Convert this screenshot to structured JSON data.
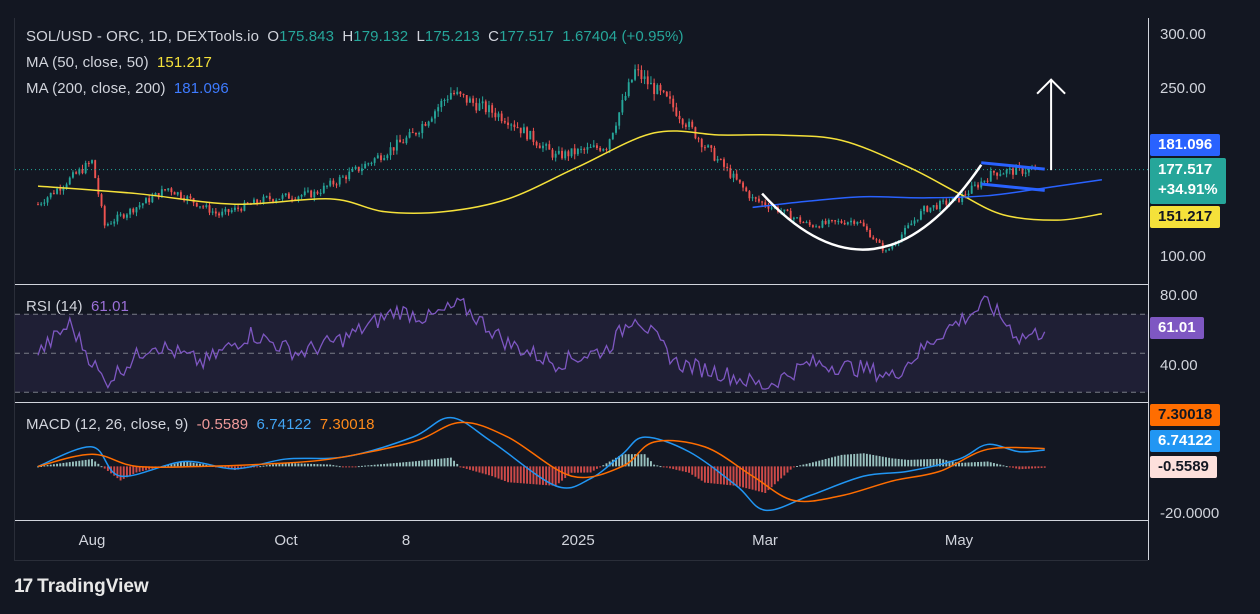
{
  "colors": {
    "background": "#131722",
    "up": "#26a69a",
    "down": "#ef5350",
    "ma50": "#f5e13a",
    "ma200": "#2962ff",
    "rsi": "#7e57c2",
    "macd": "#2196f3",
    "signal": "#ff6d00",
    "annotation": "#ffffff"
  },
  "logo": {
    "brand": "TradingView",
    "icon": "tradingview-logo-icon"
  },
  "legend_main": {
    "symbol": "SOL/USD - ORC, 1D, DEXTools.io",
    "open_key": "O",
    "open": "175.843",
    "high_key": "H",
    "high": "179.132",
    "low_key": "L",
    "low": "175.213",
    "close_key": "C",
    "close": "177.517",
    "change": "1.67404 (+0.95%)"
  },
  "legend_ma50": {
    "label": "MA (50, close, 50)",
    "value": "151.217"
  },
  "legend_ma200": {
    "label": "MA (200, close, 200)",
    "value": "181.096"
  },
  "legend_rsi": {
    "label": "RSI (14)",
    "value": "61.01"
  },
  "legend_macd": {
    "label": "MACD (12, 26, close, 9)",
    "hist": "-0.5589",
    "macd": "6.74122",
    "signal": "7.30018"
  },
  "price_tags": {
    "ma200": "181.096",
    "close": "177.517",
    "change": "+34.91%",
    "ma50": "151.217"
  },
  "rsi_tag": "61.01",
  "macd_tags": {
    "signal": "7.30018",
    "macd": "6.74122",
    "hist": "-0.5589"
  },
  "price_axis": [
    "300.00",
    "250.00",
    "100.00"
  ],
  "rsi_axis": [
    "80.00",
    "40.00"
  ],
  "macd_axis": [
    "-20.0000"
  ],
  "time_axis": [
    "Aug",
    "Oct",
    "8",
    "2025",
    "Mar",
    "May"
  ],
  "chart_data": [
    {
      "type": "candlestick",
      "title": "SOL/USD - ORC, 1D, DEXTools.io",
      "x_axis": [
        "Aug",
        "Oct",
        "8",
        "2025",
        "Mar",
        "May"
      ],
      "ylim": [
        70,
        320
      ],
      "close_trend": {
        "x": [
          "Jul 15",
          "Aug 1",
          "Aug 5",
          "Aug 25",
          "Sep 10",
          "Sep 25",
          "Oct 10",
          "Oct 25",
          "Nov 10",
          "Nov 22",
          "Dec 10",
          "Dec 25",
          "Jan 10",
          "Jan 19",
          "Jan 30",
          "Feb 10",
          "Feb 25",
          "Mar 5",
          "Mar 15",
          "Mar 30",
          "Apr 8",
          "Apr 20",
          "May 1",
          "May 12",
          "May 25"
        ],
        "values": [
          145,
          185,
          125,
          160,
          135,
          150,
          155,
          180,
          210,
          250,
          225,
          190,
          200,
          270,
          240,
          200,
          150,
          140,
          125,
          130,
          100,
          140,
          150,
          175,
          177.5
        ]
      },
      "series": [
        {
          "name": "MA (50, close, 50)",
          "x": [
            "Jul 15",
            "Aug 15",
            "Sep 15",
            "Oct 15",
            "Nov 1",
            "Nov 20",
            "Dec 10",
            "Jan 1",
            "Jan 25",
            "Feb 15",
            "Mar 5",
            "Mar 25",
            "Apr 15",
            "May 1",
            "May 15",
            "Jun 1",
            "Jun 15"
          ],
          "values": [
            162,
            155,
            145,
            150,
            138,
            138,
            150,
            180,
            212,
            210,
            210,
            205,
            180,
            155,
            135,
            130,
            136
          ]
        },
        {
          "name": "MA (200, close, 200)",
          "x": [
            "Feb 25",
            "Mar 15",
            "Apr 1",
            "Apr 20",
            "May 10",
            "Jun 1",
            "Jun 15"
          ],
          "values": [
            142,
            148,
            152,
            151,
            153,
            162,
            168
          ]
        }
      ],
      "annotations": {
        "cup_curve": {
          "x": [
            "Feb 28",
            "Apr 5",
            "May 8"
          ],
          "values": [
            155,
            94,
            182
          ]
        },
        "flag_channel": {
          "x": [
            "May 8",
            "May 28"
          ],
          "upper": [
            184,
            178
          ],
          "lower": [
            164,
            158
          ]
        },
        "arrow": {
          "x": "May 30",
          "from": 177,
          "to": 262
        }
      }
    },
    {
      "type": "line",
      "title": "RSI (14)",
      "ylim": [
        25,
        85
      ],
      "bands": [
        70,
        50,
        30
      ],
      "series": [
        {
          "name": "RSI (14)",
          "x": [
            "Jul 15",
            "Jul 25",
            "Aug 5",
            "Aug 20",
            "Sep 5",
            "Sep 20",
            "Oct 5",
            "Oct 20",
            "Nov 5",
            "Nov 15",
            "Nov 25",
            "Dec 10",
            "Dec 25",
            "Jan 10",
            "Jan 19",
            "Feb 1",
            "Feb 15",
            "Mar 1",
            "Mar 15",
            "Apr 1",
            "Apr 10",
            "Apr 25",
            "May 10",
            "May 20",
            "May 28"
          ],
          "values": [
            50,
            65,
            35,
            55,
            45,
            60,
            50,
            58,
            72,
            68,
            75,
            55,
            45,
            52,
            70,
            45,
            40,
            33,
            45,
            42,
            38,
            60,
            76,
            58,
            61.01
          ]
        }
      ]
    },
    {
      "type": "line",
      "title": "MACD (12, 26, close, 9)",
      "ylim": [
        -22,
        26
      ],
      "series": [
        {
          "name": "MACD",
          "x": [
            "Jul 15",
            "Aug 1",
            "Aug 10",
            "Aug 30",
            "Sep 15",
            "Oct 1",
            "Oct 20",
            "Nov 10",
            "Nov 22",
            "Dec 5",
            "Dec 25",
            "Jan 5",
            "Jan 15",
            "Jan 22",
            "Feb 5",
            "Feb 20",
            "Mar 1",
            "Mar 15",
            "Apr 1",
            "Apr 15",
            "May 1",
            "May 10",
            "May 20",
            "May 28"
          ],
          "values": [
            0,
            8,
            -4,
            2,
            -1,
            3,
            4,
            12,
            20,
            10,
            -8,
            -5,
            5,
            12,
            6,
            -8,
            -18,
            -12,
            -4,
            -2,
            3,
            9,
            6,
            6.74
          ]
        },
        {
          "name": "Signal",
          "x": [
            "Jul 15",
            "Aug 1",
            "Aug 15",
            "Sep 5",
            "Sep 25",
            "Oct 15",
            "Nov 10",
            "Nov 25",
            "Dec 10",
            "Dec 30",
            "Jan 15",
            "Jan 25",
            "Feb 10",
            "Feb 25",
            "Mar 10",
            "Mar 25",
            "Apr 10",
            "Apr 25",
            "May 10",
            "May 28"
          ],
          "values": [
            0,
            5,
            0,
            0,
            1,
            3,
            10,
            18,
            12,
            -4,
            0,
            10,
            8,
            -4,
            -14,
            -12,
            -6,
            -2,
            7,
            7.3
          ]
        }
      ]
    }
  ]
}
